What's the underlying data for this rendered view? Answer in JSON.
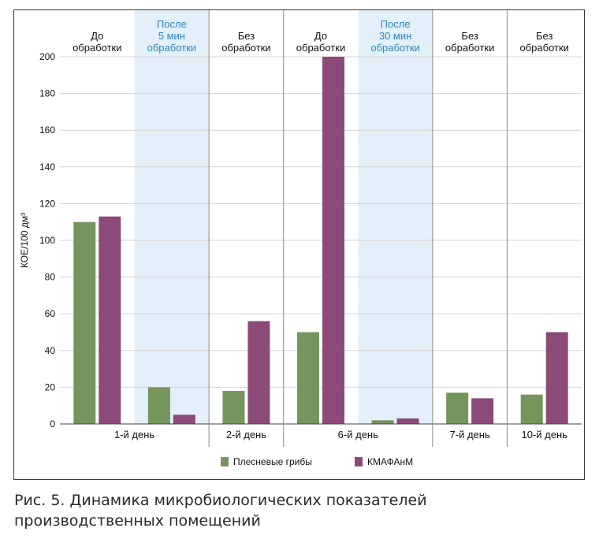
{
  "chart_data": {
    "type": "bar",
    "ylabel": "КОЕ/100 дм³",
    "ylim": [
      0,
      200
    ],
    "yticks": [
      0,
      20,
      40,
      60,
      80,
      100,
      120,
      140,
      160,
      180,
      200
    ],
    "groups": [
      {
        "header": [
          "До",
          "обработки"
        ],
        "highlight": false,
        "values": [
          110,
          113
        ]
      },
      {
        "header": [
          "После",
          "5 мин",
          "обработки"
        ],
        "highlight": true,
        "values": [
          20,
          5
        ]
      },
      {
        "header": [
          "Без",
          "обработки"
        ],
        "highlight": false,
        "values": [
          18,
          56
        ]
      },
      {
        "header": [
          "До",
          "обработки"
        ],
        "highlight": false,
        "values": [
          50,
          200
        ]
      },
      {
        "header": [
          "После",
          "30 мин",
          "обработки"
        ],
        "highlight": true,
        "values": [
          2,
          3
        ]
      },
      {
        "header": [
          "Без",
          "обработки"
        ],
        "highlight": false,
        "values": [
          17,
          14
        ]
      },
      {
        "header": [
          "Без",
          "обработки"
        ],
        "highlight": false,
        "values": [
          16,
          50
        ]
      }
    ],
    "days": [
      {
        "label": "1-й день",
        "span": [
          0,
          1
        ]
      },
      {
        "label": "2-й день",
        "span": [
          2,
          2
        ]
      },
      {
        "label": "6-й день",
        "span": [
          3,
          4
        ]
      },
      {
        "label": "7-й день",
        "span": [
          5,
          5
        ]
      },
      {
        "label": "10-й день",
        "span": [
          6,
          6
        ]
      }
    ],
    "series": [
      {
        "name": "Плесневые грибы",
        "color": "#76955d"
      },
      {
        "name": "КМАФАнМ",
        "color": "#8c4a78"
      }
    ],
    "colors": {
      "highlight_bg": "#e3eff9",
      "highlight_text": "#2f86c3",
      "grid": "#d4d4d4",
      "separator": "#8a8a8a"
    }
  },
  "caption": {
    "line1": "Рис. 5. Динамика микробиологических показателей",
    "line2": "производственных помещений"
  }
}
